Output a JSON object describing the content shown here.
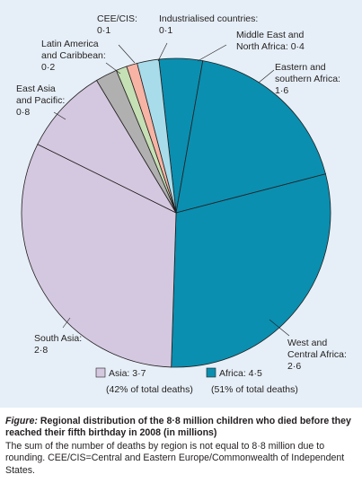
{
  "chart_data": {
    "type": "pie",
    "unit": "millions",
    "slices": [
      {
        "label_lines": [
          "Middle East and",
          "North Africa: 0·4"
        ],
        "value": 0.4,
        "group": "africa",
        "color": "#0a8fb0"
      },
      {
        "label_lines": [
          "Eastern and",
          "southern Africa:",
          "1·6"
        ],
        "value": 1.6,
        "group": "africa",
        "color": "#0a8fb0"
      },
      {
        "label_lines": [
          "West and",
          "Central Africa:",
          "2·6"
        ],
        "value": 2.6,
        "group": "africa",
        "color": "#0a8fb0"
      },
      {
        "label_lines": [
          "South Asia:",
          "2·8"
        ],
        "value": 2.8,
        "group": "asia",
        "color": "#d4c8e0"
      },
      {
        "label_lines": [
          "East Asia",
          "and Pacific:",
          "0·8"
        ],
        "value": 0.8,
        "group": "asia",
        "color": "#d4c8e0"
      },
      {
        "label_lines": [
          "Latin America",
          "and Caribbean:",
          "0·2"
        ],
        "value": 0.2,
        "group": "other",
        "color": "#b0b0b0"
      },
      {
        "label_lines": [
          "CEE/CIS:",
          "0·1"
        ],
        "value": 0.1,
        "group": "other",
        "color": "#c5e0b4"
      },
      {
        "label_lines": [
          "Industrialised countries:",
          "0·1"
        ],
        "value": 0.1,
        "group": "other",
        "color": "#f7b3a4"
      },
      {
        "label_lines": [],
        "value": 0.2,
        "group": "other",
        "color": "#a8dcea"
      }
    ],
    "legend": [
      {
        "label": "Asia: 3·7",
        "note": "(42% of total deaths)",
        "color": "#d4c8e0"
      },
      {
        "label": "Africa: 4·5",
        "note": "(51% of total deaths)",
        "color": "#0a8fb0"
      }
    ]
  },
  "caption": {
    "figure_word": "Figure:",
    "title": "Regional distribution of the 8·8 million children who died before they reached their fifth birthday in 2008 (in millions)",
    "note": "The sum of the number of deaths by region is not equal to 8·8 million due to rounding. CEE/CIS=Central and Eastern Europe/Commonwealth of Independent States."
  }
}
